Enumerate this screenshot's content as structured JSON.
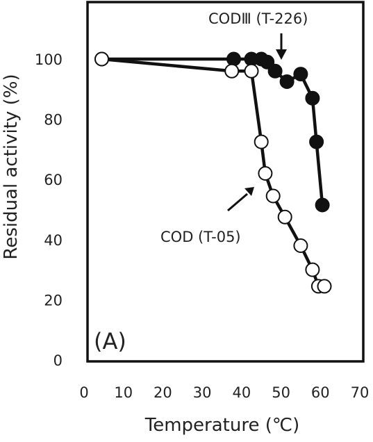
{
  "chart_data": {
    "type": "line",
    "xlabel": "Temperature (℃)",
    "ylabel": "Residual activity (%)",
    "xlim": [
      0,
      70
    ],
    "ylim": [
      0,
      100
    ],
    "x_ticks": [
      "0",
      "10",
      "20",
      "30",
      "40",
      "50",
      "60",
      "70"
    ],
    "y_ticks": [
      "0",
      "20",
      "40",
      "60",
      "80",
      "100"
    ],
    "grid": false,
    "legend": "none",
    "panel_label": "(A)",
    "annotations": [
      "CODⅢ (T-226)",
      "COD (T-05)"
    ],
    "series": [
      {
        "name": "CODⅢ (T-226)",
        "marker": "filled-circle",
        "color": "#111111",
        "x": [
          4.5,
          38,
          42.5,
          45,
          46.5,
          48.5,
          51.5,
          55,
          58,
          59,
          60.5
        ],
        "y": [
          100,
          100,
          100,
          100,
          99,
          96,
          92.5,
          95,
          87,
          72.5,
          51.5
        ]
      },
      {
        "name": "COD (T-05)",
        "marker": "open-circle",
        "color": "#111111",
        "x": [
          4.5,
          37.5,
          42.5,
          45,
          46,
          48,
          51,
          55,
          58,
          59.5,
          61
        ],
        "y": [
          100,
          96,
          96,
          72.5,
          62,
          54.5,
          47.5,
          38,
          30,
          24.5,
          24.5
        ]
      }
    ]
  }
}
